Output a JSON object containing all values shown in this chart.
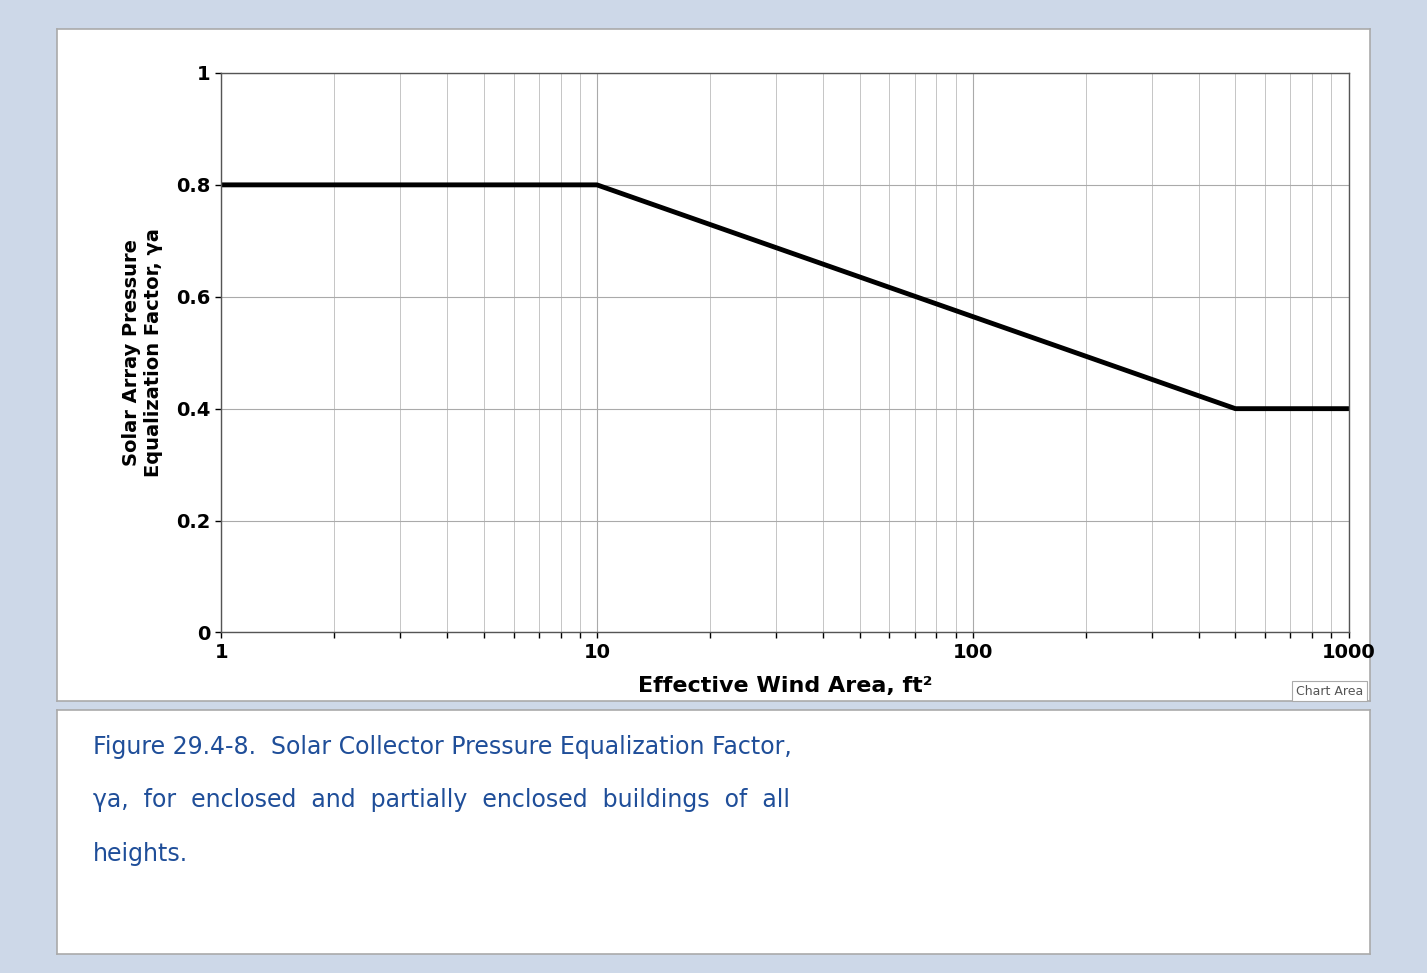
{
  "x_data": [
    1,
    10,
    500,
    1000
  ],
  "y_data": [
    0.8,
    0.8,
    0.4,
    0.4
  ],
  "line_color": "#000000",
  "line_width": 3.5,
  "xlim": [
    1,
    1000
  ],
  "ylim": [
    0,
    1.0
  ],
  "yticks": [
    0,
    0.2,
    0.4,
    0.6,
    0.8,
    1.0
  ],
  "xtick_labels": [
    "1",
    "10",
    "100",
    "1000"
  ],
  "xtick_values": [
    1,
    10,
    100,
    1000
  ],
  "xlabel": "Effective Wind Area, ft²",
  "ylabel": "Solar Array Pressure\nEqualization Factor, γa",
  "xlabel_fontsize": 16,
  "ylabel_fontsize": 14,
  "tick_fontsize": 14,
  "grid_color": "#aaaaaa",
  "grid_linewidth": 0.8,
  "background_color": "#ffffff",
  "outer_background": "#cdd8e8",
  "figure_background": "#cdd8e8",
  "caption_line1": "Figure 29.4-8.  Solar Collector Pressure Equalization Factor,",
  "caption_line2": "γa,  for  enclosed  and  partially  enclosed  buildings  of  all",
  "caption_line3": "heights.",
  "caption_color": "#1f4e99",
  "caption_fontsize": 17,
  "chart_area_label": "Chart Area",
  "chart_area_fontsize": 9,
  "chart_area_color": "#555555",
  "panel_bg": "#ffffff",
  "panel_edge": "#aaaaaa"
}
